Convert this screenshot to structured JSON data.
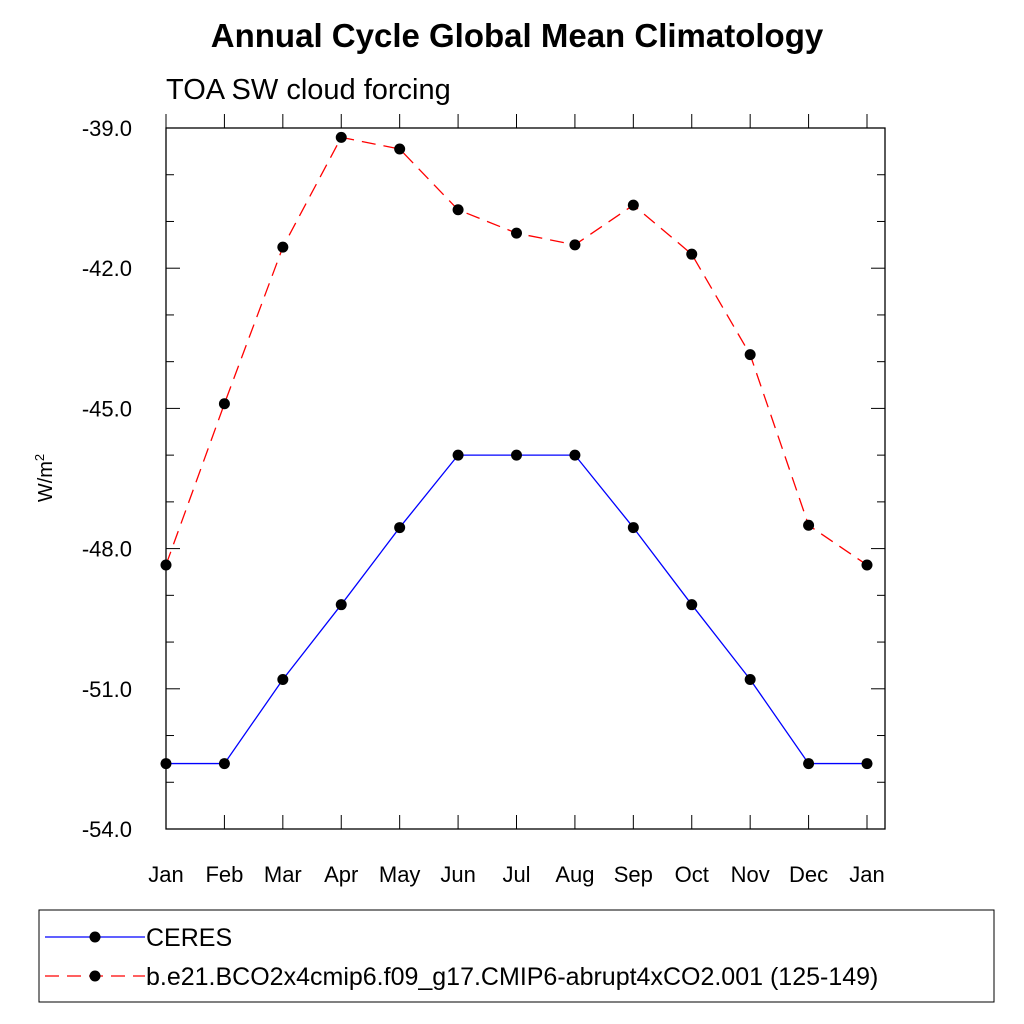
{
  "chart_data": {
    "type": "line",
    "title": "Annual Cycle Global Mean Climatology",
    "subtitle": "TOA SW cloud forcing",
    "xlabel": "",
    "ylabel": "W/m",
    "ylabel_superscript": "2",
    "categories": [
      "Jan",
      "Feb",
      "Mar",
      "Apr",
      "May",
      "Jun",
      "Jul",
      "Aug",
      "Sep",
      "Oct",
      "Nov",
      "Dec",
      "Jan"
    ],
    "ylim": [
      -54.0,
      -39.0
    ],
    "yticks": [
      -39.0,
      -42.0,
      -45.0,
      -48.0,
      -51.0,
      -54.0
    ],
    "ytick_labels": [
      "-39.0",
      "-42.0",
      "-45.0",
      "-48.0",
      "-51.0",
      "-54.0"
    ],
    "series": [
      {
        "name": "CERES",
        "color": "#0000ff",
        "dash": "solid",
        "values": [
          -52.6,
          -52.6,
          -50.8,
          -49.2,
          -47.55,
          -46.0,
          -46.0,
          -46.0,
          -47.55,
          -49.2,
          -50.8,
          -52.6,
          -52.6
        ]
      },
      {
        "name": "b.e21.BCO2x4cmip6.f09_g17.CMIP6-abrupt4xCO2.001 (125-149)",
        "color": "#ff0000",
        "dash": "dashed",
        "values": [
          -48.35,
          -44.9,
          -41.55,
          -39.2,
          -39.45,
          -40.75,
          -41.25,
          -41.5,
          -40.65,
          -41.7,
          -43.85,
          -47.5,
          -48.35
        ]
      }
    ],
    "legend_position": "bottom"
  }
}
